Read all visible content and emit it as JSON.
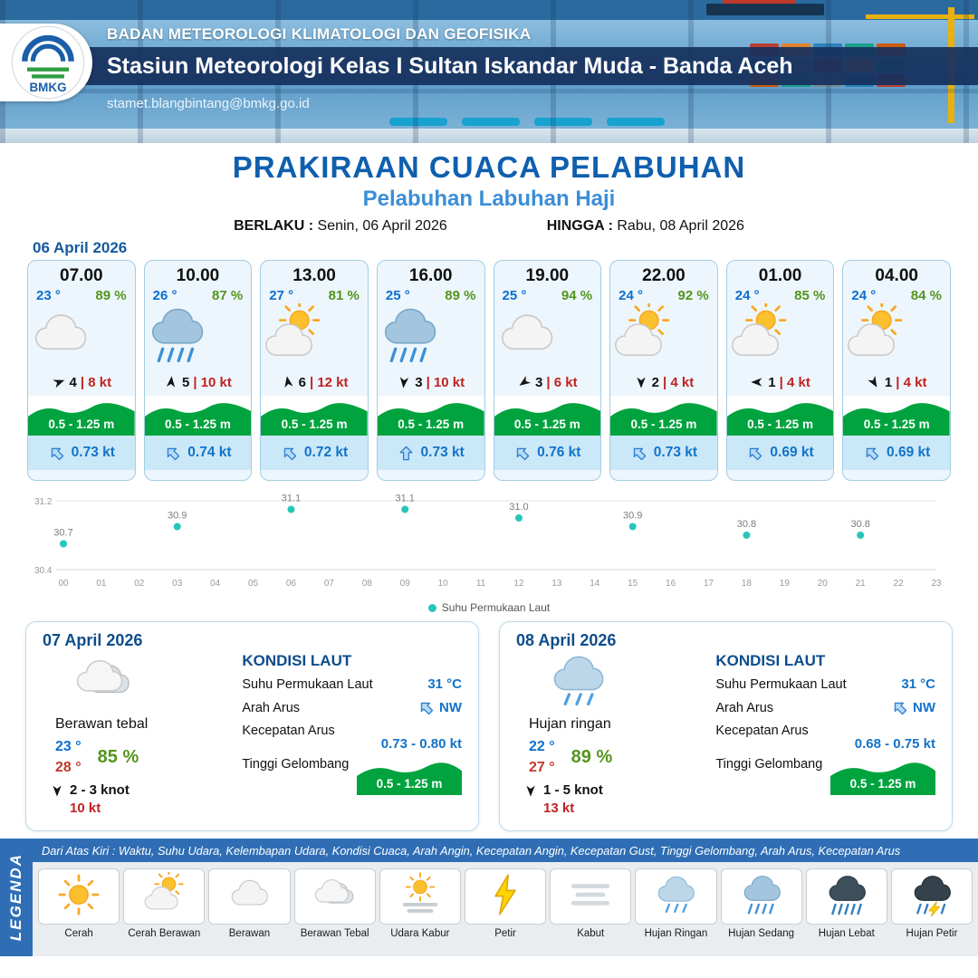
{
  "header": {
    "agency": "BADAN METEOROLOGI KLIMATOLOGI DAN GEOFISIKA",
    "station": "Stasiun Meteorologi Kelas I Sultan Iskandar Muda - Banda Aceh",
    "email": "stamet.blangbintang@bmkg.go.id",
    "logo_text": "BMKG"
  },
  "title": {
    "main": "PRAKIRAAN CUACA PELABUHAN",
    "sub": "Pelabuhan Labuhan Haji",
    "valid_label": "BERLAKU :",
    "valid_value": "Senin, 06 April 2026",
    "until_label": "HINGGA :",
    "until_value": "Rabu, 08 April 2026"
  },
  "forecast": {
    "date": "06 April 2026",
    "cards": [
      {
        "time": "07.00",
        "temp": "23 °",
        "rh": "89 %",
        "icon": "berawan",
        "wind_deg": 70,
        "wind_speed": "4",
        "gust": "| 8 kt",
        "wave": "0.5 - 1.25 m",
        "current_deg": -45,
        "current": "0.73 kt"
      },
      {
        "time": "10.00",
        "temp": "26 °",
        "rh": "87 %",
        "icon": "hujan-sedang",
        "wind_deg": 5,
        "wind_speed": "5",
        "gust": "| 10 kt",
        "wave": "0.5 - 1.25 m",
        "current_deg": -45,
        "current": "0.74 kt"
      },
      {
        "time": "13.00",
        "temp": "27 °",
        "rh": "81 %",
        "icon": "cerah-berawan",
        "wind_deg": -10,
        "wind_speed": "6",
        "gust": "| 12 kt",
        "wave": "0.5 - 1.25 m",
        "current_deg": -45,
        "current": "0.72 kt"
      },
      {
        "time": "16.00",
        "temp": "25 °",
        "rh": "89 %",
        "icon": "hujan-sedang",
        "wind_deg": 185,
        "wind_speed": "3",
        "gust": "| 10 kt",
        "wave": "0.5 - 1.25 m",
        "current_deg": 0,
        "current": "0.73 kt"
      },
      {
        "time": "19.00",
        "temp": "25 °",
        "rh": "94 %",
        "icon": "berawan",
        "wind_deg": 235,
        "wind_speed": "3",
        "gust": "| 6 kt",
        "wave": "0.5 - 1.25 m",
        "current_deg": -45,
        "current": "0.76 kt"
      },
      {
        "time": "22.00",
        "temp": "24 °",
        "rh": "92 %",
        "icon": "cerah-berawan",
        "wind_deg": 180,
        "wind_speed": "2",
        "gust": "| 4 kt",
        "wave": "0.5 - 1.25 m",
        "current_deg": -45,
        "current": "0.73 kt"
      },
      {
        "time": "01.00",
        "temp": "24 °",
        "rh": "85 %",
        "icon": "cerah-berawan",
        "wind_deg": 270,
        "wind_speed": "1",
        "gust": "| 4 kt",
        "wave": "0.5 - 1.25 m",
        "current_deg": -45,
        "current": "0.69 kt"
      },
      {
        "time": "04.00",
        "temp": "24 °",
        "rh": "84 %",
        "icon": "cerah-berawan",
        "wind_deg": 150,
        "wind_speed": "1",
        "gust": "| 4 kt",
        "wave": "0.5 - 1.25 m",
        "current_deg": -45,
        "current": "0.69 kt"
      }
    ]
  },
  "chart_data": {
    "type": "scatter",
    "title": "Suhu Permukaan Laut",
    "x": [
      0,
      3,
      6,
      9,
      12,
      15,
      18,
      21
    ],
    "values": [
      30.7,
      30.9,
      31.1,
      31.1,
      31.0,
      30.9,
      30.8,
      30.8
    ],
    "x_ticks": [
      "00",
      "01",
      "02",
      "03",
      "04",
      "05",
      "06",
      "07",
      "08",
      "09",
      "10",
      "11",
      "12",
      "13",
      "14",
      "15",
      "16",
      "17",
      "18",
      "19",
      "20",
      "21",
      "22",
      "23"
    ],
    "xlabel": "",
    "ylabel": "",
    "ylim": [
      30.4,
      31.2
    ],
    "grid": true,
    "legend": "Suhu Permukaan Laut",
    "legend_position": "bottom",
    "point_color": "#26c6b9"
  },
  "daily": [
    {
      "date": "07 April 2026",
      "icon": "berawan-tebal",
      "condition": "Berawan tebal",
      "temp_min": "23 °",
      "temp_max": "28 °",
      "rh": "85 %",
      "wind_deg": 180,
      "wind_range": "2  - 3 knot",
      "gust": "10 kt",
      "sea": {
        "title": "KONDISI LAUT",
        "sst_label": "Suhu Permukaan Laut",
        "sst": "31 °C",
        "dir_label": "Arah Arus",
        "dir": "NW",
        "dir_deg": -45,
        "speed_label": "Kecepatan Arus",
        "speed": "0.73  - 0.80 kt",
        "wave_label": "Tinggi Gelombang",
        "wave": "0.5 - 1.25 m"
      }
    },
    {
      "date": "08 April 2026",
      "icon": "hujan-ringan",
      "condition": "Hujan ringan",
      "temp_min": "22 °",
      "temp_max": "27 °",
      "rh": "89 %",
      "wind_deg": 180,
      "wind_range": "1  - 5 knot",
      "gust": "13 kt",
      "sea": {
        "title": "KONDISI LAUT",
        "sst_label": "Suhu Permukaan Laut",
        "sst": "31 °C",
        "dir_label": "Arah Arus",
        "dir": "NW",
        "dir_deg": -45,
        "speed_label": "Kecepatan Arus",
        "speed": "0.68  - 0.75 kt",
        "wave_label": "Tinggi Gelombang",
        "wave": "0.5 - 1.25 m"
      }
    }
  ],
  "legend_bar": {
    "title": "LEGENDA",
    "note": "Dari Atas Kiri : Waktu, Suhu Udara, Kelembapan Udara, Kondisi Cuaca, Arah Angin, Kecepatan Angin, Kecepatan Gust, Tinggi Gelombang, Arah Arus, Kecepatan Arus",
    "items": [
      {
        "label": "Cerah",
        "icon": "cerah"
      },
      {
        "label": "Cerah Berawan",
        "icon": "cerah-berawan"
      },
      {
        "label": "Berawan",
        "icon": "berawan"
      },
      {
        "label": "Berawan Tebal",
        "icon": "berawan-tebal"
      },
      {
        "label": "Udara Kabur",
        "icon": "udara-kabur"
      },
      {
        "label": "Petir",
        "icon": "petir"
      },
      {
        "label": "Kabut",
        "icon": "kabut"
      },
      {
        "label": "Hujan Ringan",
        "icon": "hujan-ringan"
      },
      {
        "label": "Hujan Sedang",
        "icon": "hujan-sedang"
      },
      {
        "label": "Hujan Lebat",
        "icon": "hujan-lebat"
      },
      {
        "label": "Hujan Petir",
        "icon": "hujan-petir"
      }
    ]
  }
}
